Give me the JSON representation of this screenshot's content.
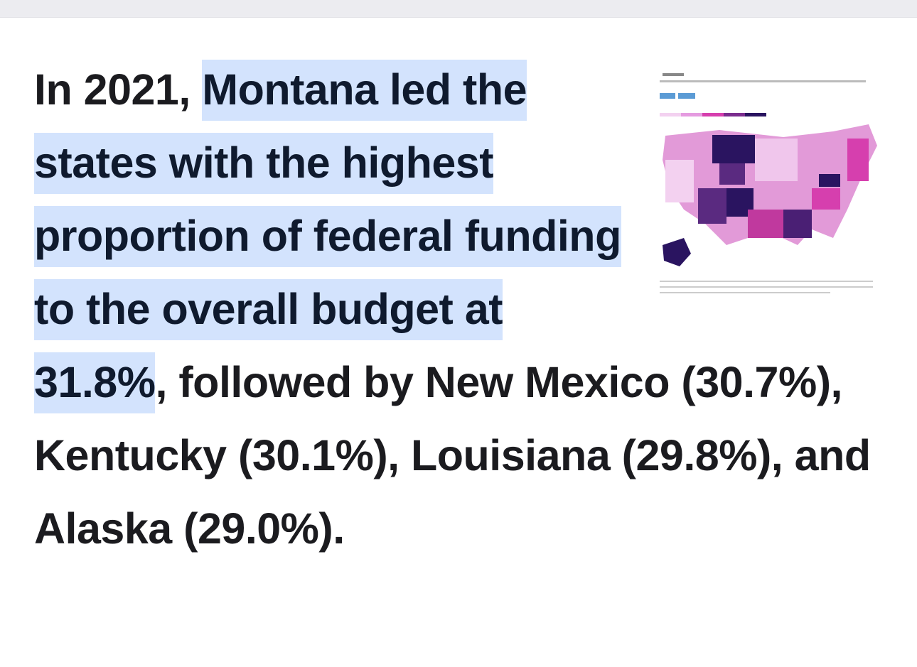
{
  "paragraph": {
    "lead": "In 2021, ",
    "highlight": "Montana led the states with the highest proportion of federal funding to the overall budget at 31.8%",
    "rest": ", followed by New Mexico (30.7%), Kentucky (30.1%), Louisiana (29.8%), and Alaska (29.0%)."
  }
}
